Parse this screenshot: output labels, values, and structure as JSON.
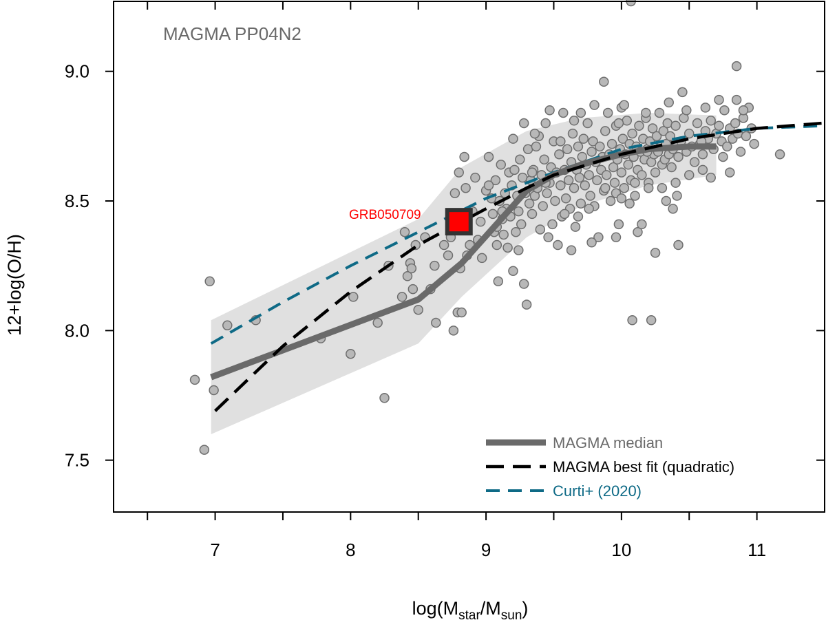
{
  "chart_data": {
    "type": "scatter",
    "title": "MAGMA PP04N2",
    "xlabel": {
      "prefix": "log(M",
      "sub1": "star",
      "mid": "/M",
      "sub2": "sun",
      "suffix": ")"
    },
    "ylabel": "12+log(O/H)",
    "xlim": [
      6.25,
      11.5
    ],
    "ylim": [
      7.3,
      9.27
    ],
    "x_ticks": [
      6.5,
      7,
      7.5,
      8,
      8.5,
      9,
      9.5,
      10,
      10.5,
      11
    ],
    "x_tick_labels": [
      "7",
      "8",
      "9",
      "10",
      "11"
    ],
    "x_tick_label_values": [
      7,
      8,
      9,
      10,
      11
    ],
    "y_ticks": [
      7.5,
      8.0,
      8.5,
      9.0
    ],
    "y_tick_labels": [
      "7.5",
      "8.0",
      "8.5",
      "9.0"
    ],
    "legend_position": "bottom-right",
    "colors": {
      "point_fill": "#b8b8b8",
      "point_stroke": "#6e6e6e",
      "median": "#6a6a6a",
      "fit": "#000000",
      "curti": "#0e6a86",
      "band": "#e0e0e0",
      "highlight": "#ff0000",
      "highlight_border": "#333333",
      "label_gray": "#6a6a6a"
    },
    "points": [
      [
        6.85,
        7.81
      ],
      [
        6.92,
        7.54
      ],
      [
        6.96,
        8.19
      ],
      [
        6.99,
        7.77
      ],
      [
        7.09,
        8.02
      ],
      [
        7.3,
        8.04
      ],
      [
        7.78,
        7.97
      ],
      [
        8.0,
        7.91
      ],
      [
        8.02,
        8.13
      ],
      [
        8.2,
        8.03
      ],
      [
        8.25,
        7.74
      ],
      [
        8.28,
        8.25
      ],
      [
        8.38,
        8.13
      ],
      [
        8.4,
        8.38
      ],
      [
        8.42,
        8.21
      ],
      [
        8.44,
        8.26
      ],
      [
        8.45,
        8.24
      ],
      [
        8.46,
        8.16
      ],
      [
        8.48,
        8.33
      ],
      [
        8.5,
        8.08
      ],
      [
        8.55,
        8.36
      ],
      [
        8.59,
        8.16
      ],
      [
        8.62,
        8.25
      ],
      [
        8.63,
        8.03
      ],
      [
        8.69,
        8.33
      ],
      [
        8.72,
        8.29
      ],
      [
        8.74,
        8.36
      ],
      [
        8.76,
        8.0
      ],
      [
        8.77,
        8.53
      ],
      [
        8.79,
        8.07
      ],
      [
        8.8,
        8.61
      ],
      [
        8.81,
        8.24
      ],
      [
        8.82,
        8.07
      ],
      [
        8.84,
        8.67
      ],
      [
        8.85,
        8.55
      ],
      [
        8.86,
        8.29
      ],
      [
        8.88,
        8.33
      ],
      [
        8.9,
        8.46
      ],
      [
        8.92,
        8.59
      ],
      [
        8.94,
        8.35
      ],
      [
        8.96,
        8.42
      ],
      [
        8.97,
        8.28
      ],
      [
        9.0,
        8.54
      ],
      [
        9.02,
        8.67
      ],
      [
        9.04,
        8.51
      ],
      [
        9.05,
        8.45
      ],
      [
        9.06,
        8.38
      ],
      [
        9.07,
        8.58
      ],
      [
        9.08,
        8.33
      ],
      [
        9.09,
        8.19
      ],
      [
        9.1,
        8.5
      ],
      [
        9.11,
        8.64
      ],
      [
        9.12,
        8.43
      ],
      [
        9.13,
        8.37
      ],
      [
        9.14,
        8.53
      ],
      [
        9.15,
        8.47
      ],
      [
        9.16,
        8.32
      ],
      [
        9.17,
        8.61
      ],
      [
        9.18,
        8.44
      ],
      [
        9.19,
        8.56
      ],
      [
        9.2,
        8.23
      ],
      [
        9.21,
        8.62
      ],
      [
        9.22,
        8.38
      ],
      [
        9.23,
        8.52
      ],
      [
        9.24,
        8.46
      ],
      [
        9.25,
        8.66
      ],
      [
        9.26,
        8.41
      ],
      [
        9.27,
        8.59
      ],
      [
        9.28,
        8.18
      ],
      [
        9.29,
        8.53
      ],
      [
        9.3,
        8.1
      ],
      [
        9.31,
        8.7
      ],
      [
        9.32,
        8.49
      ],
      [
        9.33,
        8.58
      ],
      [
        9.34,
        8.45
      ],
      [
        9.35,
        8.62
      ],
      [
        9.36,
        8.52
      ],
      [
        9.37,
        8.71
      ],
      [
        9.38,
        8.55
      ],
      [
        9.39,
        8.75
      ],
      [
        9.4,
        8.39
      ],
      [
        9.41,
        8.6
      ],
      [
        9.42,
        8.48
      ],
      [
        9.43,
        8.66
      ],
      [
        9.44,
        8.8
      ],
      [
        9.45,
        8.53
      ],
      [
        9.46,
        8.36
      ],
      [
        9.47,
        8.57
      ],
      [
        9.48,
        8.63
      ],
      [
        9.49,
        8.41
      ],
      [
        9.5,
        8.73
      ],
      [
        9.51,
        8.5
      ],
      [
        9.52,
        8.61
      ],
      [
        9.53,
        8.33
      ],
      [
        9.54,
        8.68
      ],
      [
        9.55,
        8.56
      ],
      [
        9.56,
        8.44
      ],
      [
        9.57,
        8.84
      ],
      [
        9.58,
        8.62
      ],
      [
        9.59,
        8.51
      ],
      [
        9.6,
        8.7
      ],
      [
        9.61,
        8.58
      ],
      [
        9.62,
        8.47
      ],
      [
        9.63,
        8.65
      ],
      [
        9.64,
        8.76
      ],
      [
        9.65,
        8.55
      ],
      [
        9.66,
        8.4
      ],
      [
        9.67,
        8.62
      ],
      [
        9.68,
        8.71
      ],
      [
        9.69,
        8.59
      ],
      [
        9.7,
        8.49
      ],
      [
        9.71,
        8.67
      ],
      [
        9.72,
        8.74
      ],
      [
        9.73,
        8.56
      ],
      [
        9.74,
        8.64
      ],
      [
        9.75,
        8.8
      ],
      [
        9.76,
        8.6
      ],
      [
        9.77,
        8.52
      ],
      [
        9.78,
        8.69
      ],
      [
        9.79,
        8.73
      ],
      [
        9.8,
        8.48
      ],
      [
        9.81,
        8.65
      ],
      [
        9.82,
        8.58
      ],
      [
        9.83,
        8.36
      ],
      [
        9.84,
        8.71
      ],
      [
        9.85,
        8.62
      ],
      [
        9.86,
        8.67
      ],
      [
        9.87,
        8.54
      ],
      [
        9.88,
        8.77
      ],
      [
        9.89,
        8.6
      ],
      [
        9.9,
        8.84
      ],
      [
        9.91,
        8.68
      ],
      [
        9.92,
        8.5
      ],
      [
        9.93,
        8.72
      ],
      [
        9.94,
        8.63
      ],
      [
        9.95,
        8.57
      ],
      [
        9.96,
        8.79
      ],
      [
        9.97,
        8.66
      ],
      [
        9.98,
        8.41
      ],
      [
        9.99,
        8.7
      ],
      [
        10.0,
        8.61
      ],
      [
        10.01,
        8.74
      ],
      [
        10.02,
        8.55
      ],
      [
        10.03,
        8.68
      ],
      [
        10.04,
        8.81
      ],
      [
        10.05,
        8.64
      ],
      [
        10.06,
        8.72
      ],
      [
        10.07,
        8.58
      ],
      [
        10.08,
        8.76
      ],
      [
        10.09,
        8.67
      ],
      [
        10.1,
        8.52
      ],
      [
        10.11,
        8.71
      ],
      [
        10.12,
        8.62
      ],
      [
        10.13,
        8.79
      ],
      [
        10.14,
        8.69
      ],
      [
        10.15,
        8.6
      ],
      [
        10.16,
        8.74
      ],
      [
        10.17,
        8.66
      ],
      [
        10.18,
        8.82
      ],
      [
        10.19,
        8.7
      ],
      [
        10.2,
        8.57
      ],
      [
        10.21,
        8.73
      ],
      [
        10.22,
        8.65
      ],
      [
        10.23,
        8.78
      ],
      [
        10.24,
        8.68
      ],
      [
        10.25,
        8.61
      ],
      [
        10.26,
        8.75
      ],
      [
        10.27,
        8.69
      ],
      [
        10.28,
        8.84
      ],
      [
        10.29,
        8.71
      ],
      [
        10.3,
        8.64
      ],
      [
        10.31,
        8.77
      ],
      [
        10.32,
        8.66
      ],
      [
        10.33,
        8.72
      ],
      [
        10.34,
        8.8
      ],
      [
        10.35,
        8.68
      ],
      [
        10.36,
        8.75
      ],
      [
        10.37,
        8.63
      ],
      [
        10.38,
        8.7
      ],
      [
        10.4,
        8.79
      ],
      [
        10.42,
        8.67
      ],
      [
        10.44,
        8.73
      ],
      [
        10.46,
        8.82
      ],
      [
        10.48,
        8.69
      ],
      [
        10.5,
        8.76
      ],
      [
        10.52,
        8.71
      ],
      [
        10.54,
        8.65
      ],
      [
        10.56,
        8.8
      ],
      [
        10.58,
        8.72
      ],
      [
        10.6,
        8.68
      ],
      [
        10.62,
        8.77
      ],
      [
        10.64,
        8.74
      ],
      [
        10.66,
        8.81
      ],
      [
        10.68,
        8.7
      ],
      [
        10.7,
        8.76
      ],
      [
        10.72,
        8.79
      ],
      [
        10.74,
        8.73
      ],
      [
        10.76,
        8.85
      ],
      [
        10.78,
        8.71
      ],
      [
        10.8,
        8.78
      ],
      [
        10.82,
        8.74
      ],
      [
        10.84,
        8.8
      ],
      [
        10.86,
        8.76
      ],
      [
        10.88,
        8.69
      ],
      [
        10.9,
        8.82
      ],
      [
        10.92,
        8.75
      ],
      [
        10.94,
        8.86
      ],
      [
        10.96,
        8.78
      ],
      [
        10.98,
        8.72
      ],
      [
        9.47,
        8.85
      ],
      [
        9.63,
        8.31
      ],
      [
        9.78,
        8.34
      ],
      [
        9.87,
        8.96
      ],
      [
        9.96,
        8.36
      ],
      [
        9.98,
        8.8
      ],
      [
        10.0,
        8.86
      ],
      [
        10.06,
        8.49
      ],
      [
        10.08,
        8.04
      ],
      [
        10.12,
        8.38
      ],
      [
        10.15,
        8.41
      ],
      [
        10.19,
        8.69
      ],
      [
        10.22,
        8.04
      ],
      [
        10.25,
        8.3
      ],
      [
        10.33,
        8.5
      ],
      [
        10.38,
        8.47
      ],
      [
        10.41,
        8.52
      ],
      [
        10.42,
        8.33
      ],
      [
        10.45,
        8.92
      ],
      [
        10.59,
        8.73
      ],
      [
        10.66,
        8.59
      ],
      [
        10.75,
        8.67
      ],
      [
        10.8,
        8.61
      ],
      [
        10.85,
        9.02
      ],
      [
        11.17,
        8.68
      ],
      [
        10.07,
        9.27
      ],
      [
        9.28,
        8.8
      ],
      [
        9.24,
        8.31
      ],
      [
        9.2,
        8.74
      ],
      [
        9.12,
        8.46
      ],
      [
        9.08,
        8.4
      ],
      [
        9.02,
        8.56
      ],
      [
        9.55,
        8.73
      ],
      [
        9.65,
        8.81
      ],
      [
        9.7,
        8.84
      ],
      [
        9.8,
        8.87
      ],
      [
        10.02,
        8.87
      ],
      [
        10.18,
        8.84
      ],
      [
        10.35,
        8.88
      ],
      [
        10.48,
        8.85
      ],
      [
        10.62,
        8.86
      ],
      [
        10.72,
        8.89
      ],
      [
        10.85,
        8.89
      ],
      [
        10.9,
        8.85
      ],
      [
        9.36,
        8.76
      ],
      [
        9.34,
        8.61
      ],
      [
        9.44,
        8.57
      ],
      [
        9.58,
        8.45
      ],
      [
        9.68,
        8.44
      ],
      [
        9.76,
        8.47
      ],
      [
        9.88,
        8.55
      ],
      [
        9.96,
        8.53
      ],
      [
        10.0,
        8.51
      ],
      [
        10.1,
        8.57
      ],
      [
        10.2,
        8.55
      ],
      [
        10.3,
        8.55
      ],
      [
        10.4,
        8.57
      ],
      [
        10.5,
        8.6
      ],
      [
        10.6,
        8.62
      ]
    ],
    "median": {
      "name": "MAGMA median",
      "x": [
        6.97,
        8.5,
        8.82,
        9.3,
        9.5,
        9.7,
        10.0,
        10.2,
        10.5,
        10.7
      ],
      "y": [
        7.82,
        8.12,
        8.26,
        8.54,
        8.6,
        8.64,
        8.68,
        8.7,
        8.71,
        8.71
      ]
    },
    "band": {
      "x": [
        6.97,
        8.5,
        8.82,
        9.3,
        9.7,
        10.2,
        10.7
      ],
      "upper": [
        8.04,
        8.43,
        8.63,
        8.77,
        8.82,
        8.84,
        8.83
      ],
      "lower": [
        7.6,
        7.95,
        8.13,
        8.36,
        8.48,
        8.56,
        8.6
      ]
    },
    "fit": {
      "name": "MAGMA best fit (quadratic)",
      "x": [
        7.0,
        7.5,
        8.0,
        8.5,
        8.82,
        9.0,
        9.3,
        9.5,
        10.0,
        10.5,
        11.0,
        11.48
      ],
      "y": [
        7.69,
        7.94,
        8.15,
        8.33,
        8.42,
        8.47,
        8.55,
        8.6,
        8.68,
        8.74,
        8.78,
        8.8
      ]
    },
    "curti": {
      "name": "Curti+ (2020)",
      "x": [
        6.97,
        7.5,
        8.0,
        8.5,
        9.0,
        9.5,
        10.0,
        10.5,
        11.0,
        11.48
      ],
      "y": [
        7.95,
        8.11,
        8.25,
        8.38,
        8.51,
        8.61,
        8.7,
        8.75,
        8.78,
        8.79
      ]
    },
    "highlight": {
      "label": "GRB050709",
      "x": 8.8,
      "y": 8.42
    },
    "legend": [
      {
        "label": "MAGMA median",
        "style": "solid",
        "color": "#6a6a6a"
      },
      {
        "label": "MAGMA best fit (quadratic)",
        "style": "dashed",
        "color": "#000000"
      },
      {
        "label": "Curti+ (2020)",
        "style": "dashed",
        "color": "#0e6a86"
      }
    ]
  }
}
